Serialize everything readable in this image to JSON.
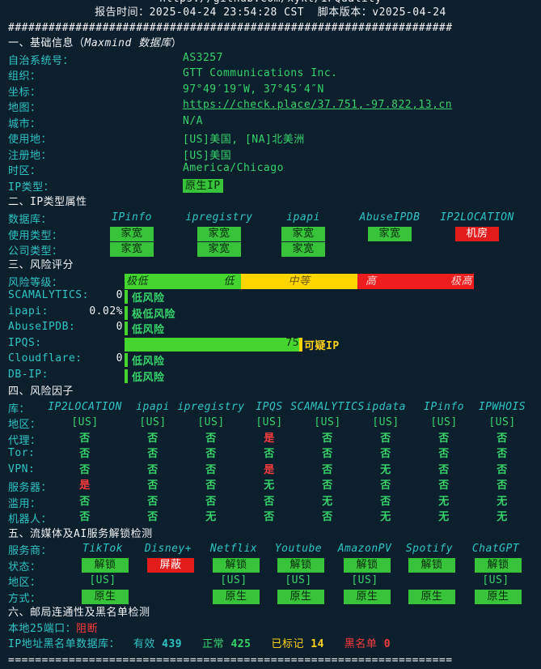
{
  "header": {
    "top_text": "https://github.com/xykt/IPQuality",
    "report_time": "报告时间：2025-04-24 23:54:28 CST  脚本版本：v2025-04-24",
    "separator": "##################################################################"
  },
  "basic": {
    "title_prefix": "一、基础信息（",
    "title_source": "Maxmind 数据库",
    "title_suffix": "）",
    "rows": [
      {
        "label": "自治系统号：",
        "value": "AS3257"
      },
      {
        "label": "组织：",
        "value": "GTT Communications Inc."
      },
      {
        "label": "坐标：",
        "value": "97°49′19″W, 37°45′4″N"
      },
      {
        "label": "地图：",
        "value": "https://check.place/37.751,-97.822,13,cn"
      },
      {
        "label": "城市：",
        "value": "N/A"
      },
      {
        "label": "使用地：",
        "value": "[US]美国, [NA]北美洲"
      },
      {
        "label": "注册地：",
        "value": "[US]美国"
      },
      {
        "label": "时区：",
        "value": "America/Chicago"
      },
      {
        "label": "IP类型：",
        "value": "原生IP"
      }
    ]
  },
  "iptype": {
    "title": "二、IP类型属性",
    "db_label": "数据库：",
    "dbs": [
      "IPinfo",
      "ipregistry",
      "ipapi",
      "AbuseIPDB",
      "IP2LOCATION"
    ],
    "usage_label": "使用类型：",
    "usage": [
      "家宽",
      "家宽",
      "家宽",
      "家宽",
      "机房"
    ],
    "company_label": "公司类型：",
    "company": [
      "家宽",
      "家宽",
      "家宽"
    ]
  },
  "risk": {
    "title": "三、风险评分",
    "level_label": "风险等级：",
    "levels": [
      "极低",
      "低",
      "中等",
      "高",
      "极高"
    ],
    "scores": [
      {
        "label": "SCAMALYTICS:",
        "value": "0",
        "verdict": "低风险"
      },
      {
        "label": "ipapi:",
        "value": "0.02%",
        "verdict": "极低风险"
      },
      {
        "label": "AbuseIPDB:",
        "value": "0",
        "verdict": "低风险"
      },
      {
        "label": "IPQS:",
        "value": "75",
        "verdict": "可疑IP"
      },
      {
        "label": "Cloudflare:",
        "value": "0",
        "verdict": "低风险"
      },
      {
        "label": "DB-IP:",
        "value": "",
        "verdict": "低风险"
      }
    ],
    "ipqs_level": 75
  },
  "factors": {
    "title": "四、风险因子",
    "lib_label": "库：",
    "libs": [
      "IP2LOCATION",
      "ipapi",
      "ipregistry",
      "IPQS",
      "SCAMALYTICS",
      "ipdata",
      "IPinfo",
      "IPWHOIS"
    ],
    "rows": [
      {
        "label": "地区：",
        "values": [
          "[US]",
          "[US]",
          "[US]",
          "[US]",
          "[US]",
          "[US]",
          "[US]",
          "[US]"
        ]
      },
      {
        "label": "代理：",
        "values": [
          "否",
          "否",
          "否",
          "是",
          "否",
          "否",
          "否",
          "否"
        ]
      },
      {
        "label": "Tor:",
        "values": [
          "否",
          "否",
          "否",
          "否",
          "否",
          "否",
          "否",
          "否"
        ]
      },
      {
        "label": "VPN:",
        "values": [
          "否",
          "否",
          "否",
          "是",
          "否",
          "无",
          "否",
          "否"
        ]
      },
      {
        "label": "服务器：",
        "values": [
          "是",
          "否",
          "否",
          "无",
          "否",
          "否",
          "否",
          "否"
        ]
      },
      {
        "label": "滥用：",
        "values": [
          "否",
          "否",
          "否",
          "否",
          "无",
          "否",
          "无",
          "无"
        ]
      },
      {
        "label": "机器人：",
        "values": [
          "否",
          "否",
          "无",
          "否",
          "否",
          "无",
          "无",
          "无"
        ]
      }
    ]
  },
  "media": {
    "title": "五、流媒体及AI服务解锁检测",
    "service_label": "服务商：",
    "services": [
      "TikTok",
      "Disney+",
      "Netflix",
      "Youtube",
      "AmazonPV",
      "Spotify",
      "ChatGPT"
    ],
    "status_label": "状态：",
    "status": [
      "解锁",
      "屏蔽",
      "解锁",
      "解锁",
      "解锁",
      "解锁",
      "解锁"
    ],
    "region_label": "地区：",
    "region": [
      "[US]",
      "",
      "[US]",
      "[US]",
      "[US]",
      "",
      "[US]"
    ],
    "method_label": "方式：",
    "method": [
      "原生",
      "",
      "原生",
      "原生",
      "原生",
      "原生",
      "原生"
    ]
  },
  "mail": {
    "title": "六、邮局连通性及黑名单检测",
    "port_label": "本地25端口：",
    "port_value": "阻断",
    "bl_label": "IP地址黑名单数据库：",
    "valid_label": "有效",
    "valid_value": "439",
    "normal_label": "正常",
    "normal_value": "425",
    "marked_label": "已标记",
    "marked_value": "14",
    "black_label": "黑名单",
    "black_value": "0"
  },
  "footer": {
    "separator": "=================================================================="
  }
}
